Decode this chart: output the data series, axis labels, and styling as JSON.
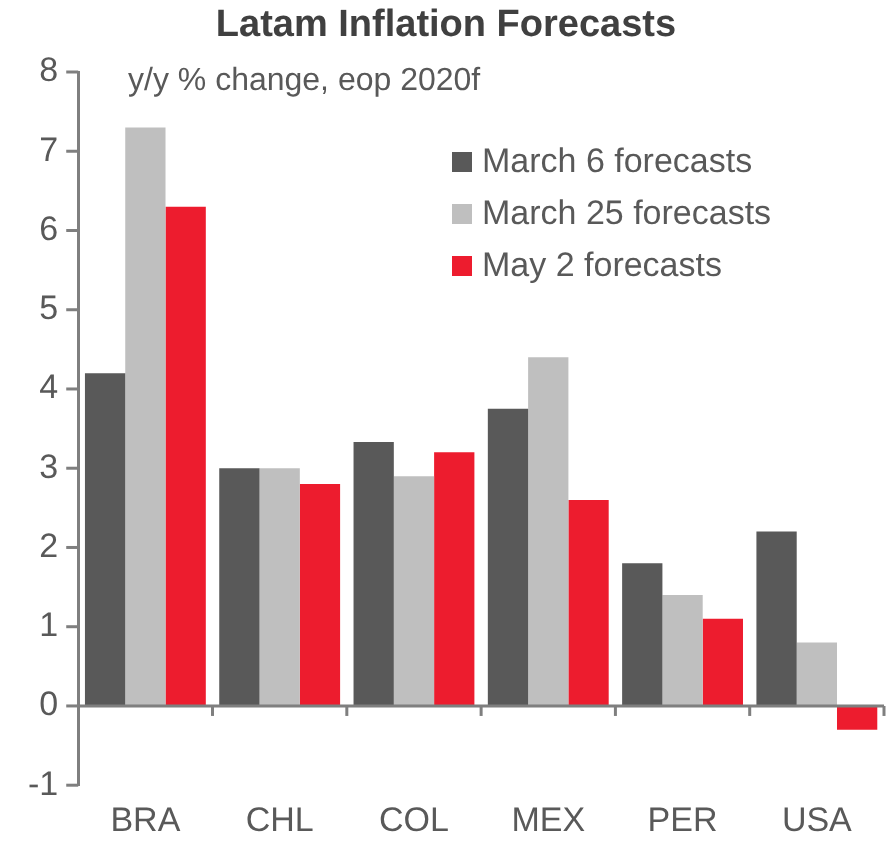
{
  "chart_data": {
    "type": "bar",
    "title": "Latam Inflation Forecasts",
    "subtitle": "y/y % change, eop 2020f",
    "categories": [
      "BRA",
      "CHL",
      "COL",
      "MEX",
      "PER",
      "USA"
    ],
    "series": [
      {
        "name": "March 6 forecasts",
        "color": "#595959",
        "values": [
          4.2,
          3.0,
          3.33,
          3.75,
          1.8,
          2.2
        ]
      },
      {
        "name": "March 25 forecasts",
        "color": "#bfbfbf",
        "values": [
          7.3,
          3.0,
          2.9,
          4.4,
          1.4,
          0.8
        ]
      },
      {
        "name": "May 2 forecasts",
        "color": "#ed1c2e",
        "values": [
          6.3,
          2.8,
          3.2,
          2.6,
          1.1,
          -0.3
        ]
      }
    ],
    "ylim": [
      -1,
      8
    ],
    "yticks": [
      -1,
      0,
      1,
      2,
      3,
      4,
      5,
      6,
      7,
      8
    ],
    "legend": "top right"
  }
}
